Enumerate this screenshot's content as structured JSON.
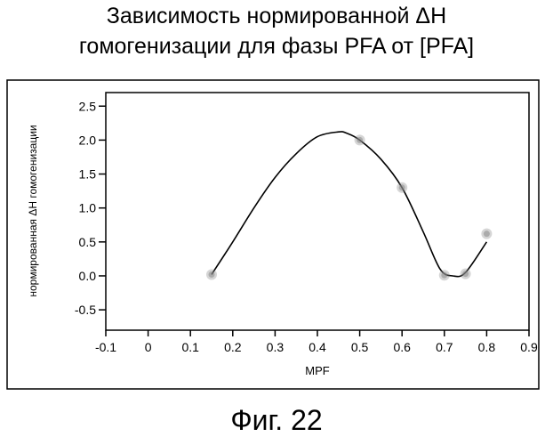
{
  "chart_data": {
    "type": "scatter",
    "title_line1": "Зависимость нормированной ΔН",
    "title_line2": "гомогенизации для фазы PFA от [PFA]",
    "xlabel": "MPF",
    "ylabel": "нормированная ΔН гомогенизации",
    "xlim": [
      -0.1,
      0.9
    ],
    "ylim": [
      -0.8,
      2.7
    ],
    "x_ticks": [
      "-0.1",
      "0",
      "0.1",
      "0.2",
      "0.3",
      "0.4",
      "0.5",
      "0.6",
      "0.7",
      "0.8",
      "0.9"
    ],
    "x_tick_values": [
      -0.1,
      0,
      0.1,
      0.2,
      0.3,
      0.4,
      0.5,
      0.6,
      0.7,
      0.8,
      0.9
    ],
    "y_ticks": [
      "2.5",
      "2.0",
      "1.5",
      "1.0",
      "0.5",
      "0.0",
      "-0.5"
    ],
    "y_tick_values": [
      2.5,
      2.0,
      1.5,
      1.0,
      0.5,
      0.0,
      -0.5
    ],
    "grid": false,
    "series": [
      {
        "kind": "points",
        "x": [
          0.15,
          0.5,
          0.6,
          0.7,
          0.75,
          0.8
        ],
        "y": [
          0.02,
          2.0,
          1.3,
          0.01,
          0.03,
          0.62
        ]
      },
      {
        "kind": "fit-line",
        "x": [
          0.15,
          0.2,
          0.25,
          0.3,
          0.35,
          0.4,
          0.45,
          0.47,
          0.5,
          0.55,
          0.6,
          0.65,
          0.69,
          0.72,
          0.75,
          0.8
        ],
        "y": [
          0.02,
          0.5,
          1.0,
          1.45,
          1.8,
          2.05,
          2.12,
          2.1,
          2.0,
          1.72,
          1.3,
          0.65,
          0.1,
          0.0,
          0.05,
          0.5
        ]
      }
    ]
  },
  "figure_caption": "Фиг. 22",
  "colors": {
    "line": "#000000",
    "points": "#888888",
    "frame": "#000000"
  }
}
